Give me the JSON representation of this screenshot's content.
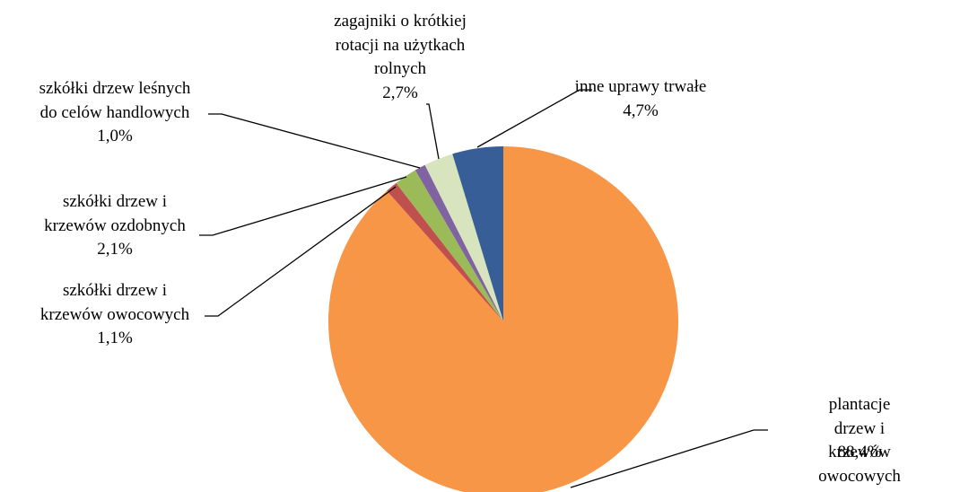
{
  "chart_data": {
    "type": "pie",
    "categories": [
      "plantacje drzew i\nkrzewów owocowych",
      "szkółki drzew i\nkrzewów owocowych",
      "szkółki drzew i\nkrzewów ozdobnych",
      "szkółki drzew leśnych\ndo celów handlowych",
      "zagajniki o krótkiej\nrotacji na użytkach\nrolnych",
      "inne uprawy trwałe"
    ],
    "values": [
      88.4,
      1.1,
      2.1,
      1.0,
      2.7,
      4.7
    ],
    "value_labels": [
      "88,4%",
      "1,1%",
      "2,1%",
      "1,0%",
      "2,7%",
      "4,7%"
    ],
    "colors": [
      "#f79646",
      "#c0504d",
      "#9bbb59",
      "#8064a2",
      "#d7e4bd",
      "#375e97"
    ]
  }
}
